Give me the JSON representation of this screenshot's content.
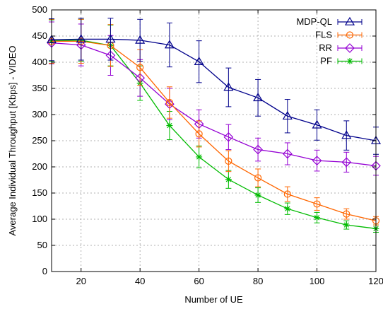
{
  "chart_data": {
    "type": "line",
    "title": "",
    "xlabel": "Number of UE",
    "ylabel": "Average Individual Throughput [Kbps] - VIDEO",
    "xlim": [
      10,
      120
    ],
    "ylim": [
      0,
      500
    ],
    "xticks": [
      20,
      40,
      60,
      80,
      100,
      120
    ],
    "yticks": [
      0,
      50,
      100,
      150,
      200,
      250,
      300,
      350,
      400,
      450,
      500
    ],
    "grid": true,
    "legend_position": "top-right",
    "x": [
      10,
      20,
      30,
      40,
      50,
      60,
      70,
      80,
      90,
      100,
      110,
      120
    ],
    "series": [
      {
        "name": "MDP-QL",
        "color": "#00008b",
        "marker": "triangle-open",
        "values": [
          443,
          444,
          444,
          442,
          433,
          401,
          352,
          332,
          297,
          280,
          260,
          250
        ],
        "errors": [
          40,
          40,
          40,
          40,
          42,
          40,
          37,
          35,
          32,
          29,
          28,
          26
        ]
      },
      {
        "name": "FLS",
        "color": "#ff6600",
        "marker": "circle-open",
        "values": [
          440,
          440,
          432,
          390,
          323,
          263,
          211,
          179,
          148,
          129,
          110,
          97
        ],
        "errors": [
          42,
          42,
          40,
          34,
          30,
          25,
          20,
          17,
          14,
          12,
          10,
          8
        ]
      },
      {
        "name": "RR",
        "color": "#9400d3",
        "marker": "diamond-open",
        "values": [
          437,
          433,
          413,
          370,
          320,
          282,
          257,
          233,
          225,
          212,
          209,
          202
        ],
        "errors": [
          40,
          40,
          38,
          35,
          30,
          27,
          24,
          22,
          21,
          20,
          19,
          18
        ]
      },
      {
        "name": "PF",
        "color": "#00bb00",
        "marker": "star",
        "values": [
          441,
          442,
          432,
          360,
          279,
          219,
          176,
          146,
          120,
          103,
          89,
          82
        ],
        "errors": [
          40,
          40,
          39,
          33,
          27,
          21,
          17,
          14,
          11,
          10,
          8,
          7
        ]
      }
    ]
  }
}
